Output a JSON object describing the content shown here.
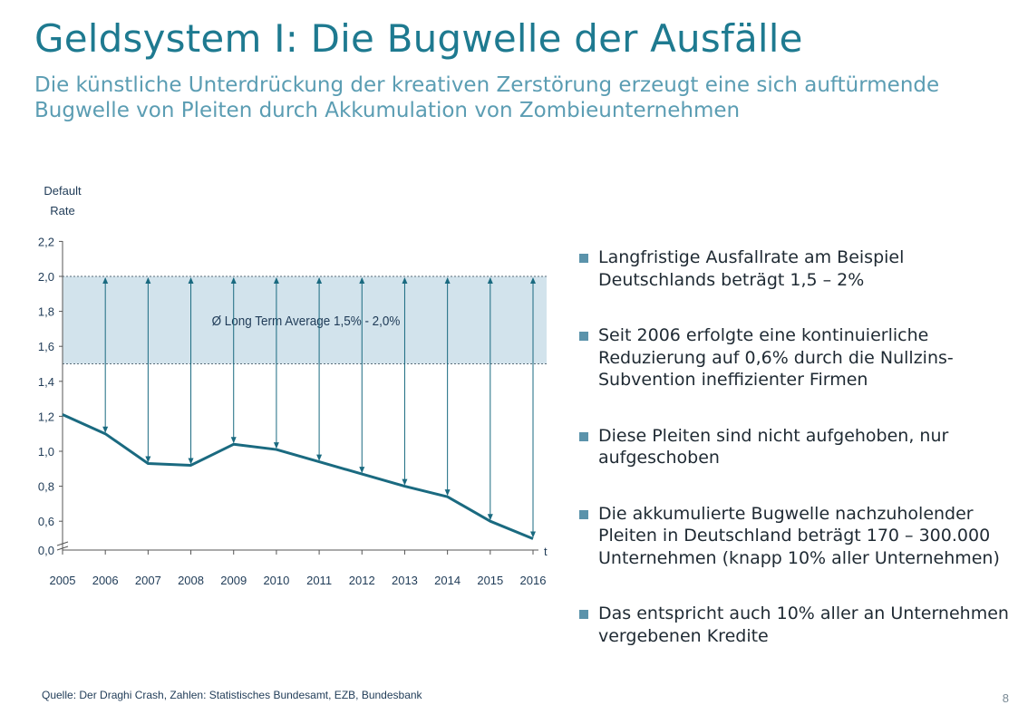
{
  "slide": {
    "title": "Geldsystem I: Die Bugwelle der Ausfälle",
    "subtitle": "Die künstliche Unterdrückung der kreativen Zerstörung erzeugt eine sich auftürmende Bugwelle von Pleiten durch Akkumulation von Zombieunternehmen",
    "source": "Quelle: Der Draghi Crash, Zahlen: Statistisches Bundesamt, EZB, Bundesbank",
    "page_number": "8"
  },
  "colors": {
    "title": "#1e7a90",
    "subtitle": "#5b9db3",
    "line": "#1a6a80",
    "band": "#d2e3ec",
    "bullet": "#5b93ab"
  },
  "bullets": [
    {
      "text": "Langfristige Ausfallrate am Beispiel Deutschlands beträgt 1,5 – 2%"
    },
    {
      "text": "Seit 2006 erfolgte eine kontinuierliche Reduzierung auf 0,6% durch die Nullzins-Subvention ineffizienter Firmen"
    },
    {
      "text": "Diese Pleiten sind nicht aufgehoben, nur aufgeschoben"
    },
    {
      "text": "Die akkumulierte Bugwelle nachzuholender Pleiten in Deutschland beträgt 170 – 300.000 Unternehmen (knapp 10% aller Unternehmen)"
    },
    {
      "text": "Das entspricht auch 10% aller an Unternehmen vergebenen Kredite"
    }
  ],
  "chart_data": {
    "type": "line",
    "ylabel": "Default Rate",
    "xlabel": "t",
    "categories": [
      "2005",
      "2006",
      "2007",
      "2008",
      "2009",
      "2010",
      "2011",
      "2012",
      "2013",
      "2014",
      "2015",
      "2016"
    ],
    "series": [
      {
        "name": "Default Rate",
        "values": [
          1.21,
          1.1,
          0.93,
          0.92,
          1.04,
          1.01,
          0.94,
          0.87,
          0.8,
          0.74,
          0.6,
          0.5
        ]
      }
    ],
    "y_ticks": [
      "2,2",
      "2,0",
      "1,8",
      "1,6",
      "1,4",
      "1,2",
      "1,0",
      "0,8",
      "0,6",
      "0,0"
    ],
    "y_tick_values": [
      2.2,
      2.0,
      1.8,
      1.6,
      1.4,
      1.2,
      1.0,
      0.8,
      0.6
    ],
    "ylim": [
      0.4,
      2.2
    ],
    "axis_break": true,
    "band": {
      "label": "Ø Long Term Average 1,5% - 2,0%",
      "low": 1.5,
      "high": 2.0
    },
    "arrows_from_value": 2.0
  }
}
